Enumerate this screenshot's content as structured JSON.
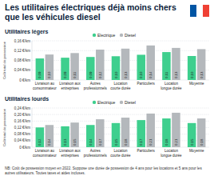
{
  "header": {
    "title": "Les utilitaires électriques déjà moins chers que les véhicules diesel"
  },
  "note": "NB: Coût de possession moyen en 2022. Suppose une durée de possession de 4 ans pour les locations et 5 ans pour les autres utilisateurs. Toutes taxes et aides incluses.",
  "chart_data": [
    {
      "type": "bar",
      "title": "Utilitaires légers",
      "y_label": "Coût total de possession",
      "categories": [
        "Livraison au consommateur",
        "Livraison aux entreprises",
        "Autres professionnels",
        "Location courte durée",
        "Particuliers",
        "Location longue durée",
        "Moyenne"
      ],
      "series": [
        {
          "name": "Electrique",
          "color": "#3ecf8e",
          "values": [
            0.088,
            0.091,
            0.094,
            0.097,
            0.103,
            0.114,
            0.098
          ],
          "value_labels": [
            "0,09",
            "0,09",
            "0,09",
            "0,10",
            "0,10",
            "0,11",
            "0,10"
          ]
        },
        {
          "name": "Diesel",
          "color": "#b4b8bc",
          "values": [
            0.104,
            0.11,
            0.124,
            0.128,
            0.141,
            0.131,
            0.126
          ],
          "value_labels": [
            "0,10",
            "0,11",
            "0,12",
            "0,13",
            "0,14",
            "0,13",
            "0,13"
          ]
        }
      ],
      "ylim": [
        0,
        0.16
      ],
      "yticks": [
        {
          "value": 0,
          "label": "0 €/km"
        },
        {
          "value": 0.04,
          "label": "0,04 €/km"
        },
        {
          "value": 0.08,
          "label": "0,08 €/km"
        },
        {
          "value": 0.12,
          "label": "0,12 €/km"
        },
        {
          "value": 0.16,
          "label": "0,16 €/km"
        }
      ],
      "grid": true,
      "legend": "top",
      "data_labels": true
    },
    {
      "type": "bar",
      "title": "Utilitaires lourds",
      "y_label": "Coût total de possession",
      "categories": [
        "Livraison au consommateur",
        "Livraison aux entreprises",
        "Autres professionnels",
        "Location courte durée",
        "Particuliers",
        "Location longue durée",
        "Moyenne"
      ],
      "series": [
        {
          "name": "Electrique",
          "color": "#3ecf8e",
          "values": [
            0.121,
            0.128,
            0.136,
            0.148,
            0.166,
            0.176,
            0.148
          ],
          "value_labels": [
            "0,12",
            "0,13",
            "0,14",
            "0,15",
            "0,17",
            "0,18",
            "0,15"
          ]
        },
        {
          "name": "Diesel",
          "color": "#b4b8bc",
          "values": [
            0.136,
            0.151,
            0.171,
            0.181,
            0.206,
            0.211,
            0.176
          ],
          "value_labels": [
            "0,14",
            "0,15",
            "0,17",
            "0,18",
            "0,21",
            "0,21",
            "0,18"
          ]
        }
      ],
      "ylim": [
        0,
        0.24
      ],
      "yticks": [
        {
          "value": 0,
          "label": "0 €/km"
        },
        {
          "value": 0.04,
          "label": "0,04 €/km"
        },
        {
          "value": 0.08,
          "label": "0,08 €/km"
        },
        {
          "value": 0.12,
          "label": "0,12 €/km"
        },
        {
          "value": 0.16,
          "label": "0,16 €/km"
        },
        {
          "value": 0.2,
          "label": "0,20 €/km"
        },
        {
          "value": 0.24,
          "label": "0,24 €/km"
        }
      ],
      "grid": true,
      "legend": "top",
      "data_labels": true
    }
  ]
}
